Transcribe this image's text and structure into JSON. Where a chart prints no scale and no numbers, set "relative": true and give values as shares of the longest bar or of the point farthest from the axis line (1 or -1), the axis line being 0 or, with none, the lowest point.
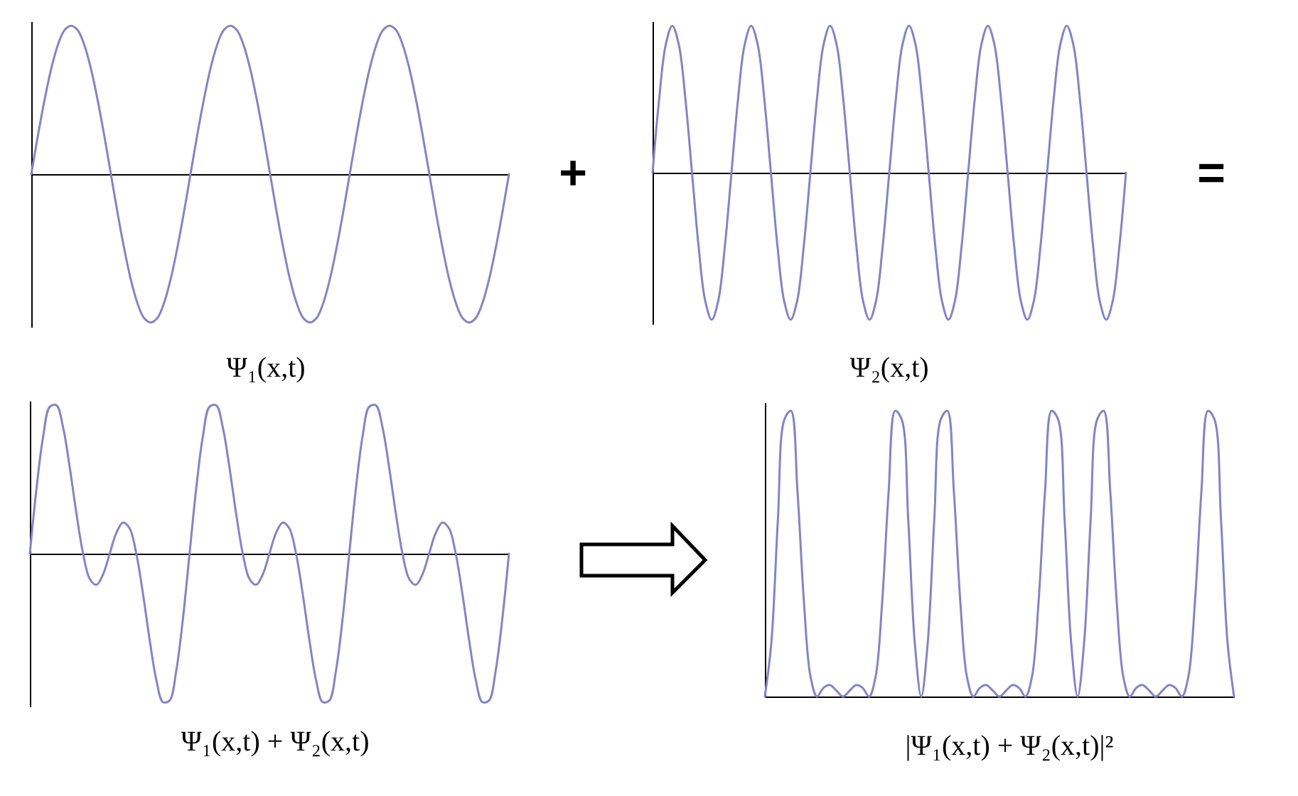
{
  "chart_data": [
    {
      "type": "line",
      "relative": true,
      "title": "Ψ₁(x,t)",
      "annotations": [
        "+"
      ],
      "color": "#8484c4",
      "categories": [
        null,
        null,
        null,
        null,
        null,
        null,
        null,
        null,
        null,
        null,
        null,
        null,
        null,
        null,
        null,
        null,
        null,
        null,
        null,
        null,
        null,
        null,
        null,
        null,
        null,
        null,
        null,
        null,
        null,
        null,
        null,
        null,
        null,
        null,
        null,
        null,
        null,
        null,
        null,
        null,
        null,
        null,
        null,
        null,
        null,
        null,
        null,
        null,
        null,
        null,
        null,
        null,
        null,
        null,
        null,
        null,
        null,
        null,
        null,
        null,
        null,
        null,
        null,
        null,
        null,
        null,
        null,
        null,
        null,
        null,
        null,
        null,
        null
      ],
      "values": [
        0,
        0.26,
        0.5,
        0.71,
        0.87,
        0.97,
        1,
        0.97,
        0.87,
        0.71,
        0.5,
        0.26,
        0,
        -0.26,
        -0.5,
        -0.71,
        -0.87,
        -0.97,
        -1,
        -0.97,
        -0.87,
        -0.71,
        -0.5,
        -0.26,
        0,
        0.26,
        0.5,
        0.71,
        0.87,
        0.97,
        1,
        0.97,
        0.87,
        0.71,
        0.5,
        0.26,
        0,
        -0.26,
        -0.5,
        -0.71,
        -0.87,
        -0.97,
        -1,
        -0.97,
        -0.87,
        -0.71,
        -0.5,
        -0.26,
        0,
        0.26,
        0.5,
        0.71,
        0.87,
        0.97,
        1,
        0.97,
        0.87,
        0.71,
        0.5,
        0.26,
        0,
        -0.26,
        -0.5,
        -0.71,
        -0.87,
        -0.97,
        -1,
        -0.97,
        -0.87,
        -0.71,
        -0.5,
        -0.26,
        0
      ]
    },
    {
      "type": "line",
      "relative": true,
      "title": "Ψ₂(x,t)",
      "annotations": [
        "="
      ],
      "color": "#8484c4",
      "categories": [
        null,
        null,
        null,
        null,
        null,
        null,
        null,
        null,
        null,
        null,
        null,
        null,
        null,
        null,
        null,
        null,
        null,
        null,
        null,
        null,
        null,
        null,
        null,
        null,
        null,
        null,
        null,
        null,
        null,
        null,
        null,
        null,
        null,
        null,
        null,
        null,
        null,
        null,
        null,
        null,
        null,
        null,
        null,
        null,
        null,
        null,
        null,
        null,
        null,
        null,
        null,
        null,
        null,
        null,
        null,
        null,
        null,
        null,
        null,
        null,
        null,
        null,
        null,
        null,
        null,
        null,
        null,
        null,
        null,
        null,
        null,
        null,
        null
      ],
      "values": [
        0,
        0.5,
        0.87,
        1,
        0.87,
        0.5,
        0,
        -0.5,
        -0.87,
        -1,
        -0.87,
        -0.5,
        0,
        0.5,
        0.87,
        1,
        0.87,
        0.5,
        0,
        -0.5,
        -0.87,
        -1,
        -0.87,
        -0.5,
        0,
        0.5,
        0.87,
        1,
        0.87,
        0.5,
        0,
        -0.5,
        -0.87,
        -1,
        -0.87,
        -0.5,
        0,
        0.5,
        0.87,
        1,
        0.87,
        0.5,
        0,
        -0.5,
        -0.87,
        -1,
        -0.87,
        -0.5,
        0,
        0.5,
        0.87,
        1,
        0.87,
        0.5,
        0,
        -0.5,
        -0.87,
        -1,
        -0.87,
        -0.5,
        0,
        0.5,
        0.87,
        1,
        0.87,
        0.5,
        0,
        -0.5,
        -0.87,
        -1,
        -0.87,
        -0.5,
        0
      ]
    },
    {
      "type": "line",
      "relative": true,
      "title": "Ψ₁(x,t) + Ψ₂(x,t)",
      "color": "#8484c4",
      "categories": [
        null,
        null,
        null,
        null,
        null,
        null,
        null,
        null,
        null,
        null,
        null,
        null,
        null,
        null,
        null,
        null,
        null,
        null,
        null,
        null,
        null,
        null,
        null,
        null,
        null,
        null,
        null,
        null,
        null,
        null,
        null,
        null,
        null,
        null,
        null,
        null,
        null,
        null,
        null,
        null,
        null,
        null,
        null,
        null,
        null,
        null,
        null,
        null,
        null,
        null,
        null,
        null,
        null,
        null,
        null,
        null,
        null,
        null,
        null,
        null,
        null,
        null,
        null,
        null,
        null,
        null,
        null,
        null,
        null,
        null,
        null,
        null,
        null
      ],
      "values": [
        0,
        0.44,
        0.79,
        0.99,
        1,
        0.85,
        0.58,
        0.27,
        0,
        -0.17,
        -0.21,
        -0.14,
        0,
        0.14,
        0.21,
        0.17,
        0,
        -0.27,
        -0.58,
        -0.85,
        -1,
        -0.99,
        -0.79,
        -0.44,
        0,
        0.44,
        0.79,
        0.99,
        1,
        0.85,
        0.58,
        0.27,
        0,
        -0.17,
        -0.21,
        -0.14,
        0,
        0.14,
        0.21,
        0.17,
        0,
        -0.27,
        -0.58,
        -0.85,
        -1,
        -0.99,
        -0.79,
        -0.44,
        0,
        0.44,
        0.79,
        0.99,
        1,
        0.85,
        0.58,
        0.27,
        0,
        -0.17,
        -0.21,
        -0.14,
        0,
        0.14,
        0.21,
        0.17,
        0,
        -0.27,
        -0.58,
        -0.85,
        -1,
        -0.99,
        -0.79,
        -0.44,
        0
      ]
    },
    {
      "type": "line",
      "relative": true,
      "title": "|Ψ₁(x,t) + Ψ₂(x,t)|²",
      "color": "#8484c4",
      "categories": [
        null,
        null,
        null,
        null,
        null,
        null,
        null,
        null,
        null,
        null,
        null,
        null,
        null,
        null,
        null,
        null,
        null,
        null,
        null,
        null,
        null,
        null,
        null,
        null,
        null,
        null,
        null,
        null,
        null,
        null,
        null,
        null,
        null,
        null,
        null,
        null,
        null,
        null,
        null,
        null,
        null,
        null,
        null,
        null,
        null,
        null,
        null,
        null,
        null,
        null,
        null,
        null,
        null,
        null,
        null,
        null,
        null,
        null,
        null,
        null,
        null,
        null,
        null,
        null,
        null,
        null,
        null,
        null,
        null,
        null,
        null,
        null,
        null
      ],
      "values": [
        0,
        0.19,
        0.62,
        0.97,
        1,
        0.72,
        0.33,
        0.07,
        0,
        0.03,
        0.04,
        0.02,
        0,
        0.02,
        0.04,
        0.03,
        0,
        0.07,
        0.33,
        0.72,
        1,
        0.97,
        0.62,
        0.19,
        0,
        0.19,
        0.62,
        0.97,
        1,
        0.72,
        0.33,
        0.07,
        0,
        0.03,
        0.04,
        0.02,
        0,
        0.02,
        0.04,
        0.03,
        0,
        0.07,
        0.33,
        0.72,
        1,
        0.97,
        0.62,
        0.19,
        0,
        0.19,
        0.62,
        0.97,
        1,
        0.72,
        0.33,
        0.07,
        0,
        0.03,
        0.04,
        0.02,
        0,
        0.02,
        0.04,
        0.03,
        0,
        0.07,
        0.33,
        0.72,
        1,
        0.97,
        0.62,
        0.19,
        0
      ]
    }
  ]
}
